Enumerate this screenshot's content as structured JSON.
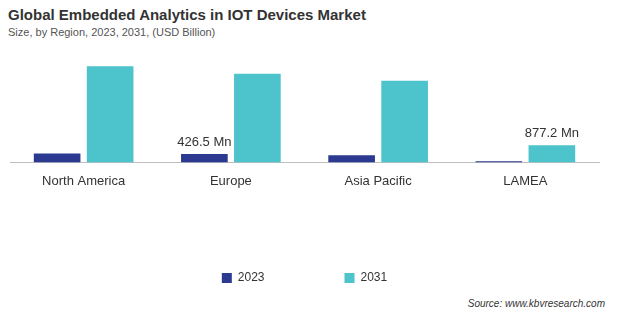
{
  "chart_data": {
    "type": "bar",
    "title": "Global Embedded Analytics in IOT Devices Market",
    "subtitle": "Size, by Region, 2023, 2031, (USD Billion)",
    "source": "Source: www.kbvresearch.com",
    "categories": [
      "North America",
      "Europe",
      "Asia Pacific",
      "LAMEA"
    ],
    "series": [
      {
        "name": "2023",
        "color": "#2b3990",
        "values": [
          457,
          426.5,
          365,
          61
        ],
        "value_labels": [
          null,
          "426.5 Mn",
          null,
          null
        ]
      },
      {
        "name": "2031",
        "color": "#4dc3cc",
        "values": [
          4880,
          4500,
          4150,
          877.2
        ],
        "value_labels": [
          null,
          null,
          null,
          "877.2 Mn"
        ]
      }
    ],
    "ylim": [
      0,
      5000
    ],
    "yticks": [
      0,
      5000
    ],
    "grid": false,
    "legend": "bottom",
    "tick_labels": "x",
    "data_labels": true
  }
}
